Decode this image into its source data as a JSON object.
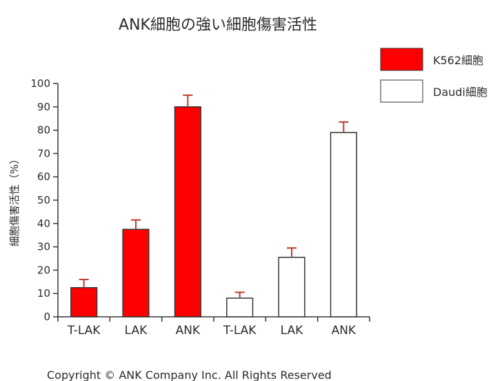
{
  "chart_data": {
    "type": "bar",
    "title": "ANK細胞の強い細胞傷害活性",
    "ylabel": "細胞傷害活性（%）",
    "xlabel": "",
    "ylim": [
      0,
      100
    ],
    "yticks": [
      0,
      10,
      20,
      30,
      40,
      50,
      60,
      70,
      80,
      90,
      100
    ],
    "categories": [
      "T-LAK",
      "LAK",
      "ANK",
      "T-LAK",
      "LAK",
      "ANK"
    ],
    "series": [
      {
        "name": "K562細胞",
        "color": "#ff0000",
        "values": [
          12.5,
          37.5,
          90,
          null,
          null,
          null
        ],
        "errors": [
          3.5,
          4,
          5,
          null,
          null,
          null
        ]
      },
      {
        "name": "Daudi細胞",
        "color": "#ffffff",
        "values": [
          null,
          null,
          null,
          8,
          25.5,
          79
        ],
        "errors": [
          null,
          null,
          null,
          2.5,
          4,
          4.5
        ]
      }
    ],
    "legend_position": "top-right",
    "error_bar_color": "#c0392b",
    "grid": false
  },
  "footer": {
    "copyright": "Copyright © ANK Company Inc.  All Rights Reserved"
  }
}
